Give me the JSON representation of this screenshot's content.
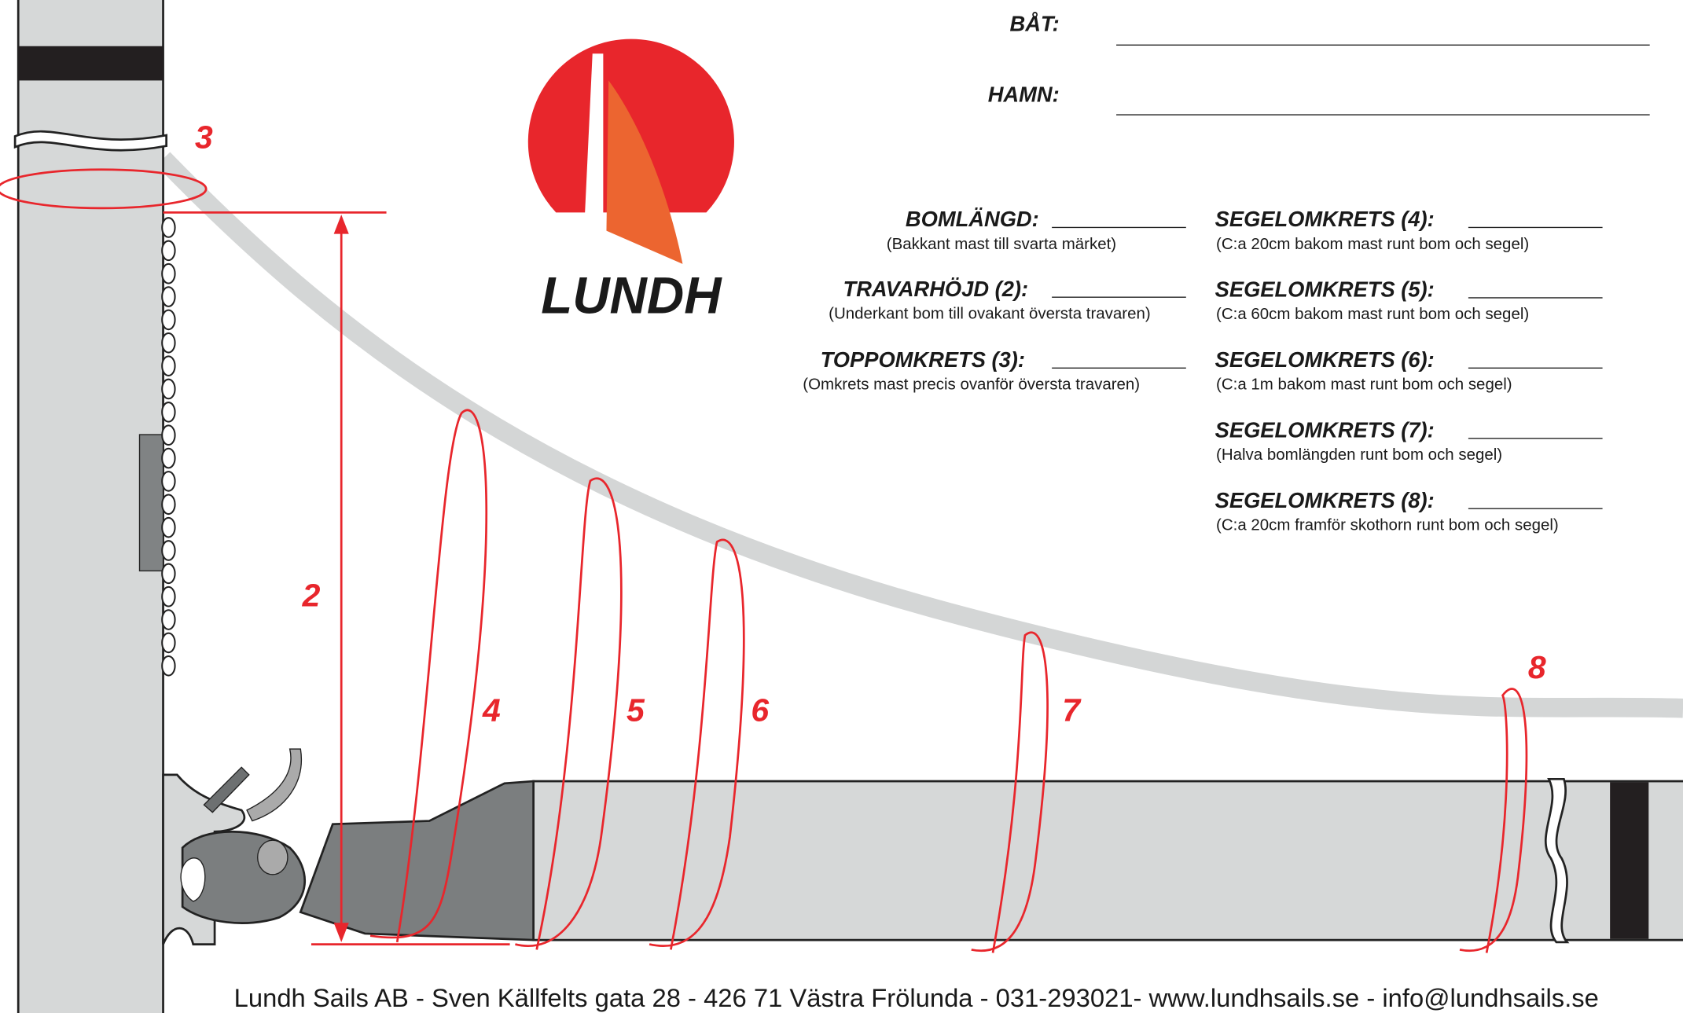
{
  "logo": {
    "text": "LUNDH"
  },
  "boat_fields": [
    {
      "label": "BÅT:"
    },
    {
      "label": "HAMN:"
    }
  ],
  "measurements": {
    "left": [
      {
        "label": "BOMLÄNGD:",
        "description": "(Bakkant mast till svarta märket)"
      },
      {
        "label": "TRAVARHÖJD (2):",
        "description": "(Underkant bom till ovakant översta travaren)"
      },
      {
        "label": "TOPPOMKRETS (3):",
        "description": "(Omkrets mast precis ovanför översta travaren)"
      }
    ],
    "right": [
      {
        "label": "SEGELOMKRETS (4):",
        "description": "(C:a 20cm bakom mast runt bom och segel)"
      },
      {
        "label": "SEGELOMKRETS (5):",
        "description": "(C:a 60cm bakom mast runt bom och segel)"
      },
      {
        "label": "SEGELOMKRETS (6):",
        "description": "(C:a 1m bakom mast runt bom och segel)"
      },
      {
        "label": "SEGELOMKRETS (7):",
        "description": "(Halva bomlängden runt bom och segel)"
      },
      {
        "label": "SEGELOMKRETS (8):",
        "description": "(C:a 20cm framför skothorn runt bom och segel)"
      }
    ]
  },
  "diagram_labels": [
    "2",
    "3",
    "4",
    "5",
    "6",
    "7",
    "8"
  ],
  "footer": "Lundh Sails AB - Sven Källfelts gata 28 - 426 71 Västra Frölunda - 031-293021- www.lundhsails.se - info@lundhsails.se"
}
